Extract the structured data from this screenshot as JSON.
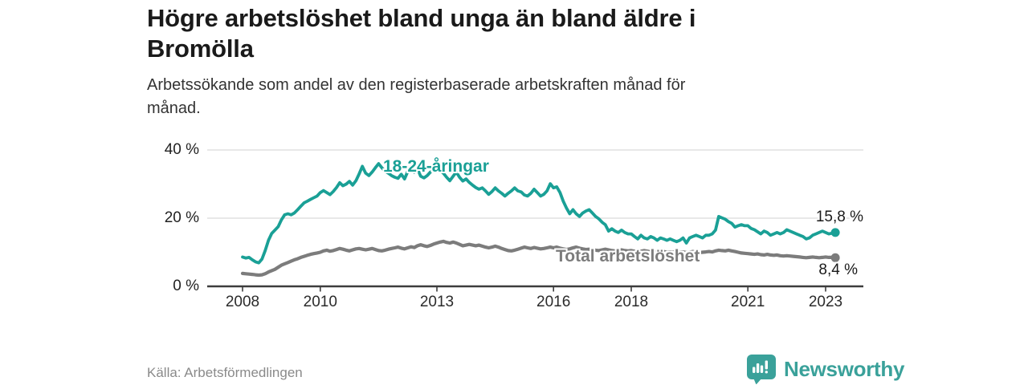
{
  "header": {
    "title": "Högre arbetslöshet bland unga än bland äldre i Bromölla",
    "subtitle": "Arbetssökande som andel av den registerbaserade arbetskraften månad för månad."
  },
  "chart_data": {
    "type": "line",
    "unit": "%",
    "x_start": "2008-01",
    "x_end": "2023-04",
    "x_interval": "monthly",
    "xticks": [
      2008,
      2010,
      2013,
      2016,
      2018,
      2021,
      2023
    ],
    "yticks": [
      {
        "value": 0,
        "label": "0 %"
      },
      {
        "value": 20,
        "label": "20 %"
      },
      {
        "value": 40,
        "label": "40 %"
      }
    ],
    "ylim": [
      0,
      40
    ],
    "grid": "horizontal",
    "legend_position": "inline-labels",
    "series": [
      {
        "name": "18-24-åringar",
        "color": "#1aa096",
        "end_value": 15.8,
        "end_label": "15,8 %",
        "values": [
          8.6,
          8.3,
          8.5,
          7.8,
          7.2,
          6.9,
          8.0,
          10.5,
          13.5,
          15.5,
          16.5,
          17.5,
          19.5,
          21.0,
          21.3,
          21.0,
          21.5,
          22.5,
          23.5,
          24.5,
          25.0,
          25.5,
          26.0,
          26.5,
          27.5,
          28.1,
          27.5,
          26.9,
          27.8,
          29.0,
          30.4,
          29.5,
          30.0,
          30.8,
          29.7,
          31.0,
          33.0,
          35.2,
          33.2,
          32.5,
          33.5,
          34.8,
          36.0,
          34.8,
          33.8,
          33.2,
          32.5,
          32.0,
          31.7,
          32.9,
          31.5,
          33.7,
          35.3,
          33.5,
          34.5,
          32.3,
          31.8,
          32.5,
          33.5,
          34.0,
          35.5,
          34.0,
          33.2,
          32.0,
          31.0,
          32.3,
          33.5,
          32.0,
          30.9,
          31.5,
          30.5,
          29.7,
          29.0,
          28.5,
          28.9,
          28.0,
          27.0,
          27.8,
          28.9,
          28.0,
          27.3,
          26.5,
          27.3,
          28.0,
          28.9,
          28.0,
          27.7,
          26.8,
          26.5,
          27.3,
          28.5,
          27.5,
          26.5,
          27.0,
          28.0,
          30.1,
          28.9,
          29.2,
          27.5,
          25.0,
          23.0,
          21.3,
          22.5,
          21.3,
          20.5,
          21.5,
          22.1,
          22.5,
          21.5,
          20.5,
          19.8,
          18.8,
          18.1,
          16.2,
          16.9,
          16.2,
          15.8,
          16.5,
          15.8,
          15.4,
          15.4,
          14.6,
          13.9,
          15.0,
          14.2,
          13.9,
          14.6,
          14.2,
          13.5,
          14.2,
          13.9,
          13.5,
          13.9,
          13.5,
          13.1,
          13.5,
          14.2,
          12.7,
          14.2,
          14.6,
          15.0,
          14.6,
          14.2,
          15.0,
          15.0,
          15.4,
          16.5,
          20.5,
          20.1,
          19.7,
          19.0,
          18.5,
          17.4,
          17.8,
          18.1,
          17.8,
          17.8,
          17.0,
          16.6,
          16.0,
          15.4,
          16.2,
          15.8,
          15.0,
          15.4,
          15.8,
          15.4,
          15.8,
          16.6,
          16.2,
          15.8,
          15.4,
          15.0,
          14.6,
          13.9,
          14.2,
          15.0,
          15.4,
          15.8,
          16.2,
          15.8,
          15.4,
          15.6,
          15.8
        ]
      },
      {
        "name": "Total arbetslöshet",
        "color": "#7c7c7c",
        "end_value": 8.4,
        "end_label": "8,4 %",
        "values": [
          3.8,
          3.7,
          3.6,
          3.5,
          3.4,
          3.3,
          3.4,
          3.7,
          4.2,
          4.6,
          5.0,
          5.6,
          6.2,
          6.6,
          7.0,
          7.4,
          7.8,
          8.1,
          8.5,
          8.8,
          9.1,
          9.4,
          9.6,
          9.8,
          10.0,
          10.4,
          10.6,
          10.3,
          10.5,
          10.8,
          11.1,
          10.9,
          10.6,
          10.4,
          10.7,
          11.0,
          11.1,
          10.9,
          10.7,
          10.9,
          11.1,
          10.8,
          10.5,
          10.4,
          10.6,
          10.9,
          11.1,
          11.3,
          11.5,
          11.2,
          11.0,
          11.3,
          11.6,
          11.4,
          11.9,
          12.2,
          11.9,
          11.7,
          12.0,
          12.4,
          12.7,
          13.0,
          13.2,
          12.9,
          12.7,
          13.0,
          12.7,
          12.3,
          11.9,
          12.1,
          12.3,
          12.1,
          11.9,
          12.1,
          11.8,
          11.5,
          11.3,
          11.5,
          11.8,
          11.5,
          11.1,
          10.8,
          10.5,
          10.4,
          10.6,
          10.9,
          11.2,
          11.5,
          11.3,
          11.1,
          11.4,
          11.2,
          11.0,
          11.1,
          11.3,
          11.5,
          11.3,
          11.5,
          11.2,
          11.0,
          10.8,
          11.0,
          11.3,
          11.5,
          11.2,
          11.0,
          10.8,
          10.9,
          10.8,
          10.6,
          10.5,
          10.7,
          10.9,
          10.7,
          10.5,
          10.4,
          10.5,
          10.7,
          10.5,
          10.4,
          10.5,
          10.3,
          10.1,
          10.3,
          10.5,
          10.3,
          10.1,
          10.0,
          9.9,
          10.0,
          10.2,
          10.0,
          10.1,
          10.0,
          9.9,
          10.0,
          10.1,
          9.9,
          10.0,
          10.2,
          10.0,
          9.9,
          10.0,
          10.1,
          10.2,
          10.1,
          10.4,
          10.6,
          10.5,
          10.4,
          10.6,
          10.4,
          10.2,
          10.0,
          9.8,
          9.7,
          9.6,
          9.5,
          9.4,
          9.5,
          9.3,
          9.2,
          9.4,
          9.2,
          9.1,
          9.2,
          9.0,
          8.9,
          9.0,
          8.9,
          8.8,
          8.7,
          8.6,
          8.5,
          8.4,
          8.5,
          8.6,
          8.5,
          8.4,
          8.5,
          8.6,
          8.5,
          8.5,
          8.4
        ]
      }
    ]
  },
  "footer": {
    "source": "Källa: Arbetsförmedlingen",
    "brand": "Newsworthy"
  },
  "colors": {
    "youth_line": "#1aa096",
    "total_line": "#7c7c7c",
    "gridline": "#d9d9d9",
    "axis": "#3d3d3d",
    "title_text": "#1a1a1a",
    "logo_teal": "#3aa19a",
    "source_text": "#8a8a8a"
  }
}
